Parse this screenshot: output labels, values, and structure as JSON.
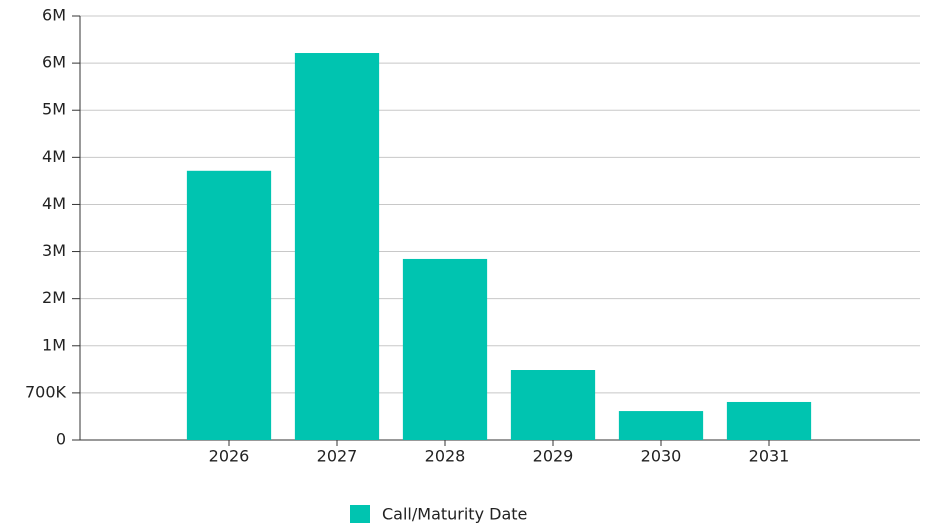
{
  "chart_data": {
    "type": "bar",
    "categories": [
      "2026",
      "2027",
      "2028",
      "2029",
      "2030",
      "2031"
    ],
    "series": [
      {
        "name": "Call/Maturity Date",
        "color": "#00c4b0",
        "values": [
          4000000,
          5750000,
          2690000,
          1040000,
          430000,
          565000
        ]
      }
    ],
    "ylim": [
      0,
      6300000
    ],
    "yticks": [
      0,
      {
        "value": 700000,
        "label": "700K"
      },
      {
        "value": 1400000,
        "label": "1M"
      },
      {
        "value": 2100000,
        "label": "2M"
      },
      {
        "value": 2800000,
        "label": "3M"
      },
      {
        "value": 3500000,
        "label": "4M"
      },
      {
        "value": 4200000,
        "label": "4M"
      },
      {
        "value": 4900000,
        "label": "5M"
      },
      {
        "value": 5600000,
        "label": "6M"
      },
      {
        "value": 6300000,
        "label": "6M"
      }
    ],
    "grid": true
  }
}
